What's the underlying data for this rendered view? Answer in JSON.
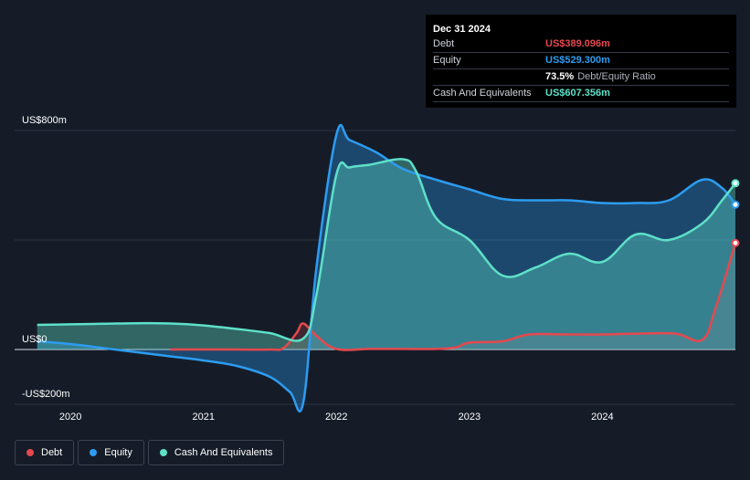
{
  "tooltip": {
    "date": "Dec 31 2024",
    "rows": [
      {
        "label": "Debt",
        "value": "US$389.096m",
        "color": "#e5484d"
      },
      {
        "label": "Equity",
        "value": "US$529.300m",
        "color": "#2d9cf0"
      },
      {
        "label": "",
        "value": "73.5%",
        "sub": "Debt/Equity Ratio",
        "color": "#ffffff"
      },
      {
        "label": "Cash And Equivalents",
        "value": "US$607.356m",
        "color": "#5ee0c8"
      }
    ]
  },
  "legend": [
    {
      "label": "Debt",
      "color": "#e5484d"
    },
    {
      "label": "Equity",
      "color": "#2d9cf0"
    },
    {
      "label": "Cash And Equivalents",
      "color": "#5ee0c8"
    }
  ],
  "chart_data": {
    "type": "area",
    "y_tick_labels": [
      "US$800m",
      "US$0",
      "-US$200m"
    ],
    "y_ticks": [
      800,
      0,
      -200
    ],
    "ylim": [
      -200,
      800
    ],
    "x_tick_labels": [
      "2020",
      "2021",
      "2022",
      "2023",
      "2024"
    ],
    "x_ticks": [
      2020,
      2021,
      2022,
      2023,
      2024
    ],
    "xlim": [
      2019.58,
      2025.0
    ],
    "grid": true,
    "series": [
      {
        "name": "Debt",
        "color": "#e5484d",
        "x": [
          2020.75,
          2021.0,
          2021.25,
          2021.5,
          2021.6,
          2021.7,
          2021.75,
          2021.85,
          2022.0,
          2022.25,
          2022.5,
          2022.75,
          2022.9,
          2023.0,
          2023.25,
          2023.45,
          2023.75,
          2024.0,
          2024.25,
          2024.55,
          2024.75,
          2024.85,
          2025.0
        ],
        "y": [
          0,
          0,
          0,
          0,
          5,
          60,
          95,
          50,
          2,
          2,
          2,
          2,
          8,
          25,
          30,
          55,
          55,
          55,
          58,
          58,
          35,
          150,
          389.1
        ]
      },
      {
        "name": "Equity",
        "color": "#2d9cf0",
        "x": [
          2019.75,
          2020.0,
          2020.25,
          2020.5,
          2020.75,
          2021.0,
          2021.25,
          2021.5,
          2021.65,
          2021.75,
          2021.85,
          2022.0,
          2022.1,
          2022.3,
          2022.5,
          2022.75,
          2023.0,
          2023.25,
          2023.5,
          2023.75,
          2024.0,
          2024.25,
          2024.5,
          2024.75,
          2024.9,
          2025.0
        ],
        "y": [
          30,
          20,
          5,
          -10,
          -25,
          -40,
          -60,
          -100,
          -155,
          -195,
          300,
          785,
          765,
          720,
          660,
          620,
          585,
          550,
          545,
          545,
          535,
          535,
          545,
          620,
          590,
          529.3
        ]
      },
      {
        "name": "Cash And Equivalents",
        "color": "#5ee0c8",
        "x": [
          2019.75,
          2020.0,
          2020.25,
          2020.5,
          2020.75,
          2021.0,
          2021.25,
          2021.5,
          2021.75,
          2021.85,
          2022.0,
          2022.1,
          2022.25,
          2022.5,
          2022.6,
          2022.75,
          2023.0,
          2023.25,
          2023.5,
          2023.75,
          2024.0,
          2024.25,
          2024.5,
          2024.75,
          2024.9,
          2025.0
        ],
        "y": [
          90,
          92,
          94,
          96,
          95,
          88,
          75,
          60,
          40,
          200,
          640,
          665,
          675,
          695,
          650,
          480,
          400,
          270,
          300,
          350,
          320,
          420,
          400,
          460,
          545,
          607.4
        ]
      }
    ]
  }
}
